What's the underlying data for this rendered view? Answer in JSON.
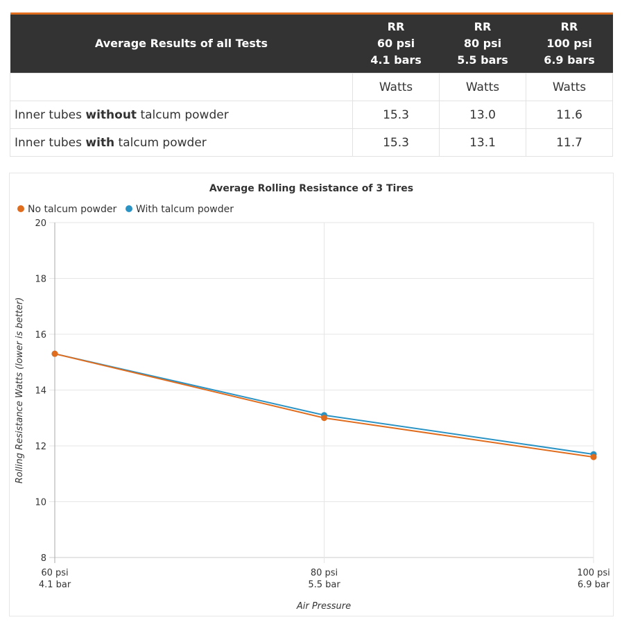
{
  "table": {
    "header_title": "Average Results of all Tests",
    "columns": [
      {
        "line1": "RR",
        "line2": "60 psi",
        "line3": "4.1 bars"
      },
      {
        "line1": "RR",
        "line2": "80 psi",
        "line3": "5.5 bars"
      },
      {
        "line1": "RR",
        "line2": "100 psi",
        "line3": "6.9 bars"
      }
    ],
    "unit_row": [
      "Watts",
      "Watts",
      "Watts"
    ],
    "rows": [
      {
        "pre": "Inner tubes ",
        "bold": "without",
        "post": " talcum powder",
        "values": [
          "15.3",
          "13.0",
          "11.6"
        ]
      },
      {
        "pre": "Inner tubes ",
        "bold": "with",
        "post": " talcum powder",
        "values": [
          "15.3",
          "13.1",
          "11.7"
        ]
      }
    ]
  },
  "chart_data": {
    "type": "line",
    "title": "Average Rolling Resistance of 3 Tires",
    "xlabel": "Air Pressure",
    "ylabel": "Rolling Resistance Watts (lower is better)",
    "categories": [
      {
        "line1": "60 psi",
        "line2": "4.1 bar"
      },
      {
        "line1": "80 psi",
        "line2": "5.5 bar"
      },
      {
        "line1": "100 psi",
        "line2": "6.9 bar"
      }
    ],
    "series": [
      {
        "name": "No talcum powder",
        "color": "#e06c1e",
        "values": [
          15.3,
          13.0,
          11.6
        ]
      },
      {
        "name": "With talcum powder",
        "color": "#2a93c4",
        "values": [
          15.3,
          13.1,
          11.7
        ]
      }
    ],
    "ylim": [
      8,
      20
    ],
    "yticks": [
      8,
      10,
      12,
      14,
      16,
      18,
      20
    ],
    "grid": true,
    "legend": "top-left"
  }
}
